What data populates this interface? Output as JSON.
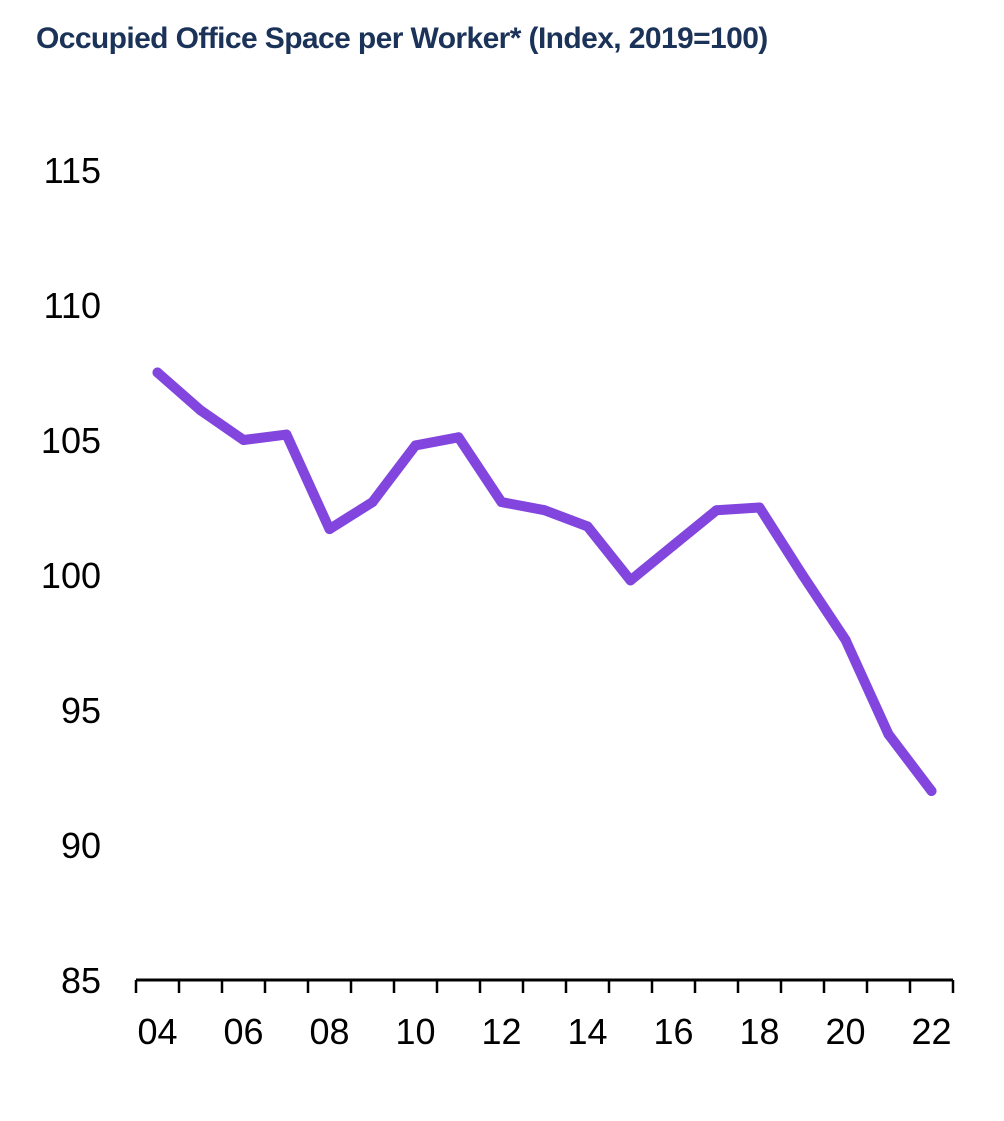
{
  "chart_data": {
    "type": "line",
    "title": "Occupied Office Space per Worker* (Index, 2019=100)",
    "xlabel": "",
    "ylabel": "",
    "x": [
      2004,
      2005,
      2006,
      2007,
      2008,
      2009,
      2010,
      2011,
      2012,
      2013,
      2014,
      2015,
      2016,
      2017,
      2018,
      2019,
      2020,
      2021,
      2022
    ],
    "series": [
      {
        "values": [
          107.5,
          106.1,
          105.0,
          105.2,
          101.7,
          102.7,
          104.8,
          105.1,
          102.7,
          102.4,
          101.8,
          99.8,
          101.1,
          102.4,
          102.5,
          100.0,
          97.6,
          94.1,
          92.0
        ]
      }
    ],
    "ylim": [
      85,
      115
    ],
    "yticks": [
      85,
      90,
      95,
      100,
      105,
      110,
      115
    ],
    "xtick_labels": [
      "04",
      "06",
      "08",
      "10",
      "12",
      "14",
      "16",
      "18",
      "20",
      "22"
    ],
    "xlim": [
      2003.5,
      2022.5
    ],
    "grid": false,
    "legend": "none"
  },
  "colors": {
    "title": "#1b3358",
    "series": "#8246df",
    "axis": "#000000",
    "text": "#000000"
  }
}
